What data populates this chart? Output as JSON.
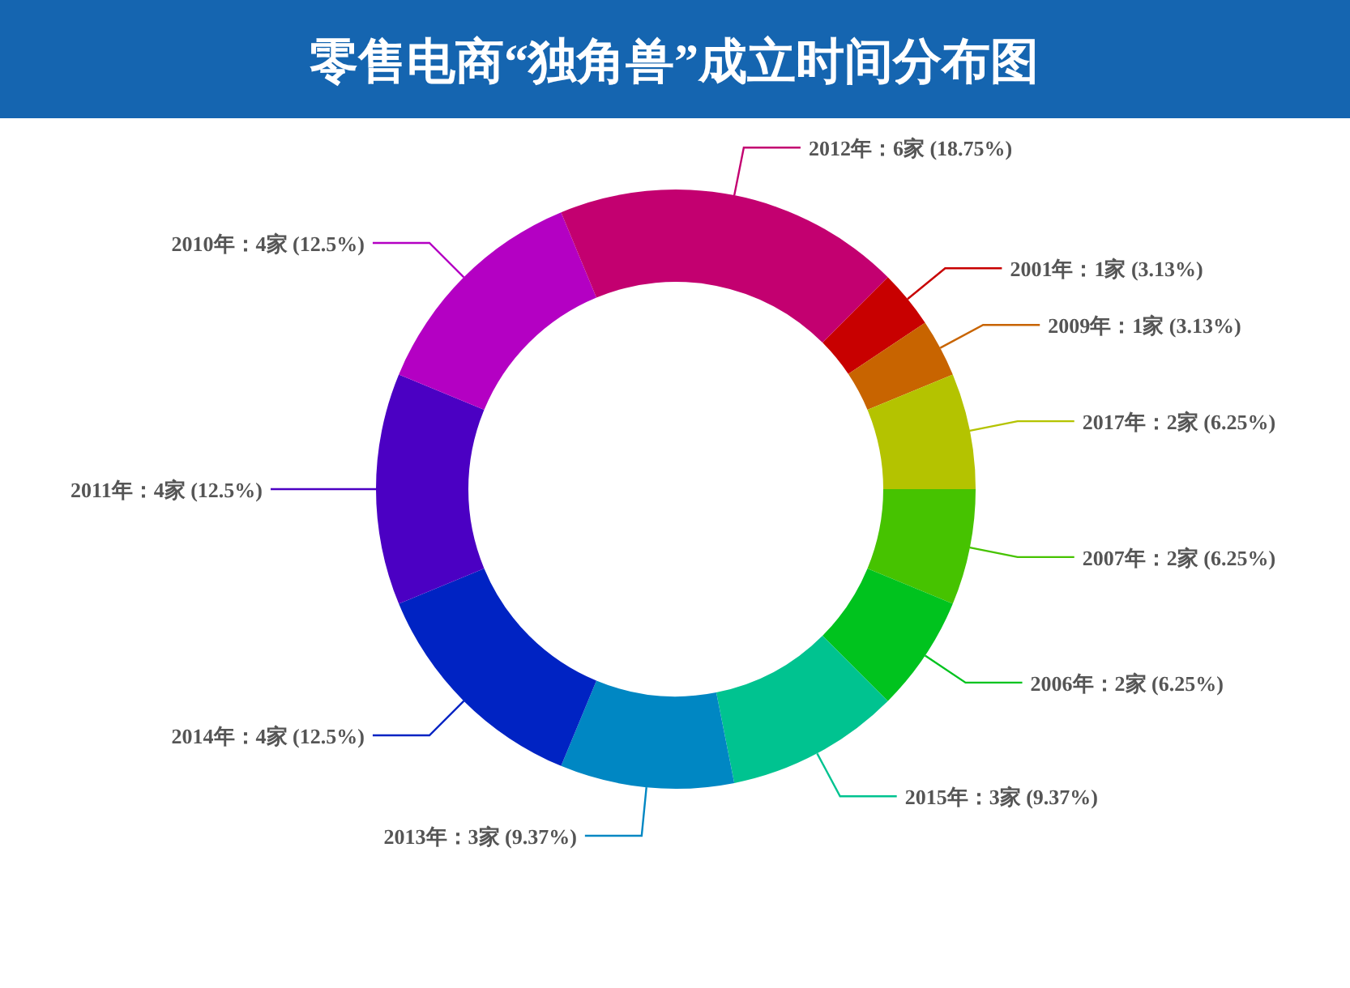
{
  "chart_data": {
    "type": "donut",
    "title": "零售电商“独角兽”成立时间分布图",
    "categories": [
      "2001年",
      "2009年",
      "2017年",
      "2007年",
      "2006年",
      "2015年",
      "2013年",
      "2014年",
      "2011年",
      "2010年",
      "2012年"
    ],
    "values": [
      1,
      1,
      2,
      2,
      2,
      3,
      3,
      4,
      4,
      4,
      6
    ],
    "value_labels": [
      "1家 (3.13%)",
      "1家 (3.13%)",
      "2家 (6.25%)",
      "2家 (6.25%)",
      "2家 (6.25%)",
      "3家 (9.37%)",
      "3家 (9.37%)",
      "4家 (12.5%)",
      "4家 (12.5%)",
      "4家 (12.5%)",
      "6家 (18.75%)"
    ],
    "colors": [
      "#c80000",
      "#c86400",
      "#b4c300",
      "#46c300",
      "#00c31e",
      "#00c390",
      "#0087c3",
      "#0023c3",
      "#4b00c3",
      "#b400c3",
      "#c30070"
    ],
    "data_labels": true
  }
}
